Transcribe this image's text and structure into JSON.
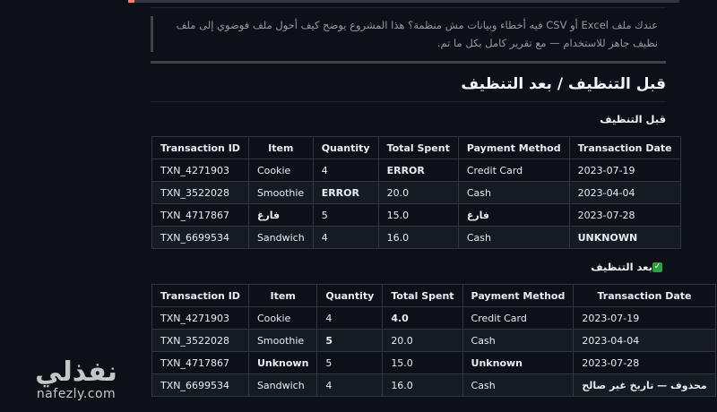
{
  "intro": "عندك ملف Excel أو CSV فيه أخطاء وبيانات مش منظمة؟ هذا المشروع يوضح كيف أحول ملف فوضوي إلى ملف نظيف جاهز للاستخدام — مع تقرير كامل بكل ما تم.",
  "section_title": "قبل التنظيف / بعد التنظيف",
  "before": {
    "heading": "قبل التنظيف",
    "columns": [
      "Transaction ID",
      "Item",
      "Quantity",
      "Total Spent",
      "Payment Method",
      "Transaction Date"
    ],
    "rows": [
      [
        {
          "v": "TXN_4271903"
        },
        {
          "v": "Cookie"
        },
        {
          "v": "4"
        },
        {
          "v": "ERROR",
          "b": true
        },
        {
          "v": "Credit Card"
        },
        {
          "v": "2023-07-19"
        }
      ],
      [
        {
          "v": "TXN_3522028"
        },
        {
          "v": "Smoothie"
        },
        {
          "v": "ERROR",
          "b": true
        },
        {
          "v": "20.0"
        },
        {
          "v": "Cash"
        },
        {
          "v": "2023-04-04"
        }
      ],
      [
        {
          "v": "TXN_4717867"
        },
        {
          "v": "فارغ",
          "b": true
        },
        {
          "v": "5"
        },
        {
          "v": "15.0"
        },
        {
          "v": "فارغ",
          "b": true
        },
        {
          "v": "2023-07-28"
        }
      ],
      [
        {
          "v": "TXN_6699534"
        },
        {
          "v": "Sandwich"
        },
        {
          "v": "4"
        },
        {
          "v": "16.0"
        },
        {
          "v": "Cash"
        },
        {
          "v": "UNKNOWN",
          "b": true
        }
      ]
    ]
  },
  "after": {
    "heading": "بعد التنظيف",
    "check_icon": "white-check-mark-icon",
    "columns": [
      "Transaction ID",
      "Item",
      "Quantity",
      "Total Spent",
      "Payment Method",
      "Transaction Date"
    ],
    "rows": [
      [
        {
          "v": "TXN_4271903"
        },
        {
          "v": "Cookie"
        },
        {
          "v": "4"
        },
        {
          "v": "4.0",
          "b": true
        },
        {
          "v": "Credit Card"
        },
        {
          "v": "2023-07-19"
        }
      ],
      [
        {
          "v": "TXN_3522028"
        },
        {
          "v": "Smoothie"
        },
        {
          "v": "5",
          "b": true
        },
        {
          "v": "20.0"
        },
        {
          "v": "Cash"
        },
        {
          "v": "2023-04-04"
        }
      ],
      [
        {
          "v": "TXN_4717867"
        },
        {
          "v": "Unknown",
          "b": true
        },
        {
          "v": "5"
        },
        {
          "v": "15.0"
        },
        {
          "v": "Unknown",
          "b": true
        },
        {
          "v": "2023-07-28"
        }
      ],
      [
        {
          "v": "TXN_6699534"
        },
        {
          "v": "Sandwich"
        },
        {
          "v": "4"
        },
        {
          "v": "16.0"
        },
        {
          "v": "Cash"
        },
        {
          "v": "محذوف — تاريخ غير صالح",
          "b": true
        }
      ]
    ]
  },
  "watermark": {
    "arabic": "نفذلي",
    "latin": "nafezly.com"
  },
  "colors": {
    "background": "#0d1117",
    "border": "#30363d",
    "check": "#2ea043"
  }
}
